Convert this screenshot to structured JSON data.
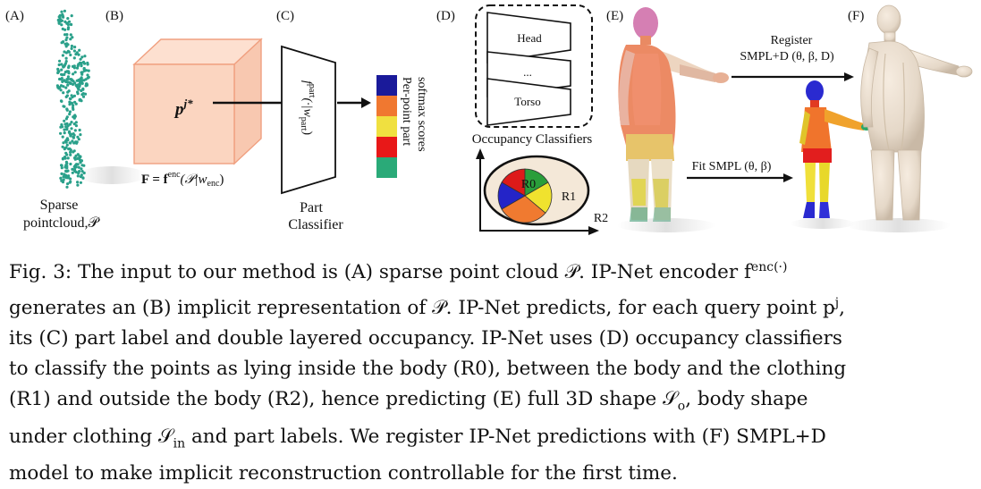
{
  "figure": {
    "panels": {
      "a": "(A)",
      "b": "(B)",
      "c": "(C)",
      "d": "(D)",
      "e": "(E)",
      "f": "(F)"
    },
    "a": {
      "label_line1": "Sparse",
      "label_line2": "pointcloud,𝒫"
    },
    "b": {
      "point": "p",
      "point_sup": "j*",
      "formula": "F = f",
      "formula_sup": "enc",
      "formula_args": "(𝒫|w",
      "formula_sub": "enc",
      "formula_close": ")"
    },
    "c": {
      "func": "f",
      "func_sup": "part",
      "func_args": "(·|w",
      "func_sub": "part",
      "func_close": ")",
      "title_line1": "Part",
      "title_line2": "Classifier"
    },
    "softmax": {
      "label_line1": "Per-point part",
      "label_line2": "softmax scores",
      "colors": [
        "#1a1a9a",
        "#f07830",
        "#f0e040",
        "#e81818",
        "#2aaa78"
      ]
    },
    "d": {
      "classifiers": [
        "Head",
        "...",
        "Torso"
      ],
      "classifiers_title": "Occupancy Classifiers",
      "regions": [
        "R0",
        "R1",
        "R2"
      ],
      "pie_colors": [
        "#dd1a1a",
        "#2a9e3a",
        "#f0e22e",
        "#f07a30",
        "#2424c8"
      ]
    },
    "register": {
      "line1": "Register",
      "line2": "SMPL+D (θ, β, D)"
    },
    "fit": {
      "label": "Fit SMPL (θ, β)"
    }
  },
  "caption": {
    "lines": [
      "Fig. 3: The input to our method is (A) sparse point cloud 𝒫. IP-Net encoder f",
      "enc(·)",
      "generates an (B) implicit representation of 𝒫. IP-Net predicts, for each query point p",
      "j",
      ",",
      "its (C) part label and double layered occupancy. IP-Net uses (D) occupancy classifiers",
      "to classify the points as lying inside the body (R0), between the body and the clothing",
      "(R1) and outside the body (R2), hence predicting (E) full 3D shape 𝒮",
      "o",
      ", body shape",
      "under clothing 𝒮",
      "in",
      " and part labels. We register IP-Net predictions with (F) SMPL+D",
      "model to make implicit reconstruction controllable for the first time."
    ]
  }
}
